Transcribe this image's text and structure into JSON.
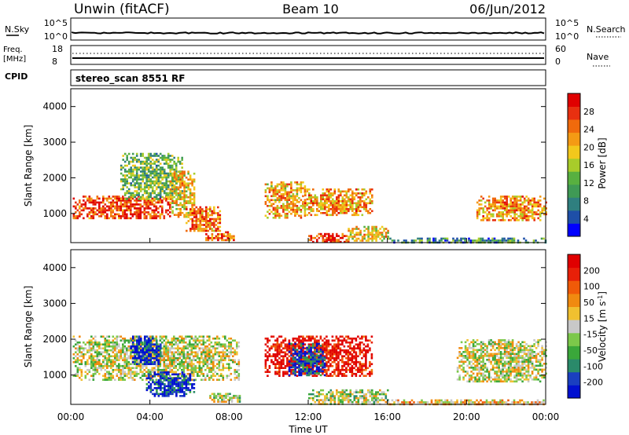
{
  "header": {
    "radar": "Unwin (fitACF)",
    "beam": "Beam 10",
    "date": "06/Jun/2012"
  },
  "top_panels": {
    "nsky": {
      "label": "N.Sky",
      "ticks_left": [
        "10^5",
        "10^0"
      ]
    },
    "nsearch": {
      "label": "N.Search",
      "ticks_right": [
        "10^5",
        "10^0"
      ]
    },
    "freq": {
      "label_line1": "Freq.",
      "label_line2": "[MHz]",
      "ticks_left": [
        "18",
        "8"
      ]
    },
    "nave": {
      "label": "Nave",
      "ticks_right": [
        "60",
        "0"
      ]
    },
    "cpid": {
      "label": "CPID",
      "value": "stereo_scan 8551 RF"
    }
  },
  "chart_data": [
    {
      "type": "heatmap",
      "title": "",
      "xlabel": "Time UT",
      "ylabel": "Slant Range [km]",
      "xlim": [
        0,
        24
      ],
      "ylim": [
        180,
        4500
      ],
      "x_ticks": [
        "00:00",
        "04:00",
        "08:00",
        "12:00",
        "16:00",
        "20:00",
        "00:00"
      ],
      "y_ticks": [
        "1000",
        "2000",
        "3000",
        "4000"
      ],
      "colorbar": {
        "label": "Power [dB]",
        "ticks": [
          "4",
          "8",
          "12",
          "16",
          "20",
          "24",
          "28"
        ],
        "colors": [
          "#0000ff",
          "#1e4fa8",
          "#2f7f7f",
          "#3f9a55",
          "#58b040",
          "#a8cc2a",
          "#f2c81c",
          "#f49a14",
          "#f06a0c",
          "#e83010",
          "#e00000"
        ]
      },
      "regions": [
        {
          "t0": 0.1,
          "t1": 5.0,
          "r0": 850,
          "r1": 1500,
          "level": 0.85
        },
        {
          "t0": 2.5,
          "t1": 5.6,
          "r0": 1400,
          "r1": 2700,
          "level": 0.4
        },
        {
          "t0": 5.0,
          "t1": 6.2,
          "r0": 900,
          "r1": 2200,
          "level": 0.6
        },
        {
          "t0": 5.8,
          "t1": 7.5,
          "r0": 500,
          "r1": 1200,
          "level": 0.75
        },
        {
          "t0": 6.8,
          "t1": 8.2,
          "r0": 250,
          "r1": 500,
          "level": 0.8
        },
        {
          "t0": 9.8,
          "t1": 11.8,
          "r0": 900,
          "r1": 1900,
          "level": 0.65
        },
        {
          "t0": 11.8,
          "t1": 15.2,
          "r0": 950,
          "r1": 1700,
          "level": 0.7
        },
        {
          "t0": 12.0,
          "t1": 14.0,
          "r0": 200,
          "r1": 450,
          "level": 0.9
        },
        {
          "t0": 14.0,
          "t1": 16.0,
          "r0": 250,
          "r1": 650,
          "level": 0.6
        },
        {
          "t0": 20.5,
          "t1": 24.0,
          "r0": 800,
          "r1": 1500,
          "level": 0.7
        },
        {
          "t0": 16.0,
          "t1": 24.0,
          "r0": 180,
          "r1": 320,
          "level": 0.3
        }
      ]
    },
    {
      "type": "heatmap",
      "title": "",
      "xlabel": "Time UT",
      "ylabel": "Slant Range [km]",
      "xlim": [
        0,
        24
      ],
      "ylim": [
        180,
        4500
      ],
      "x_ticks": [
        "00:00",
        "04:00",
        "08:00",
        "12:00",
        "16:00",
        "20:00",
        "00:00"
      ],
      "y_ticks": [
        "1000",
        "2000",
        "3000",
        "4000"
      ],
      "colorbar": {
        "label": "Velocity [m s^-1]",
        "ticks": [
          "200",
          "100",
          "50",
          "15",
          "-15",
          "-50",
          "-100",
          "-200"
        ],
        "colors": [
          "#0010d0",
          "#1a3fc0",
          "#2a8a6a",
          "#3aa73a",
          "#7cc84a",
          "#c8c8c8",
          "#f0c030",
          "#f08a10",
          "#f05a08",
          "#e82008",
          "#e00000"
        ]
      },
      "regions": [
        {
          "t0": 0.1,
          "t1": 8.5,
          "r0": 850,
          "r1": 2100,
          "level": 0.5
        },
        {
          "t0": 3.0,
          "t1": 4.5,
          "r0": 1300,
          "r1": 2100,
          "level": 0.05
        },
        {
          "t0": 3.8,
          "t1": 6.2,
          "r0": 400,
          "r1": 1100,
          "level": 0.1
        },
        {
          "t0": 7.0,
          "t1": 8.5,
          "r0": 250,
          "r1": 500,
          "level": 0.45
        },
        {
          "t0": 9.8,
          "t1": 15.2,
          "r0": 1000,
          "r1": 2100,
          "level": 0.95
        },
        {
          "t0": 11.0,
          "t1": 12.8,
          "r0": 1000,
          "r1": 1900,
          "level": 0.1
        },
        {
          "t0": 12.0,
          "t1": 16.0,
          "r0": 200,
          "r1": 600,
          "level": 0.45
        },
        {
          "t0": 19.5,
          "t1": 24.0,
          "r0": 800,
          "r1": 2000,
          "level": 0.5
        },
        {
          "t0": 16.0,
          "t1": 24.0,
          "r0": 180,
          "r1": 320,
          "level": 0.6
        }
      ]
    }
  ]
}
